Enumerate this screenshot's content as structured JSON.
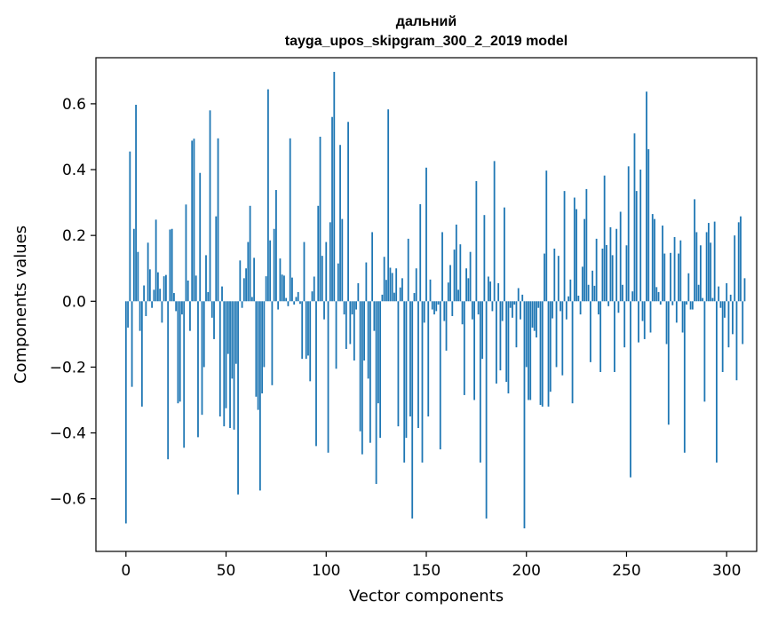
{
  "chart_data": {
    "type": "bar",
    "title": "дальний",
    "subtitle": "tayga_upos_skipgram_300_2_2019 model",
    "xlabel": "Vector components",
    "ylabel": "Components values",
    "bar_color": "#1f77b4",
    "xlim": [
      -15,
      315
    ],
    "ylim": [
      -0.76,
      0.74
    ],
    "xticks": [
      0,
      50,
      100,
      150,
      200,
      250,
      300
    ],
    "yticks": [
      -0.6,
      -0.4,
      -0.2,
      0.0,
      0.2,
      0.4,
      0.6
    ],
    "ytick_labels": [
      "−0.6",
      "−0.4",
      "−0.2",
      "0.0",
      "0.2",
      "0.4",
      "0.6"
    ],
    "values": [
      -0.675,
      -0.08,
      0.455,
      -0.26,
      0.22,
      0.597,
      0.15,
      -0.09,
      -0.32,
      0.048,
      -0.045,
      0.178,
      0.097,
      -0.02,
      0.035,
      0.248,
      0.088,
      0.038,
      -0.065,
      0.076,
      0.08,
      -0.48,
      0.218,
      0.22,
      0.025,
      -0.03,
      -0.31,
      -0.305,
      -0.04,
      -0.445,
      0.294,
      0.063,
      -0.09,
      0.488,
      0.494,
      0.078,
      -0.413,
      0.39,
      -0.345,
      -0.2,
      0.14,
      0.028,
      0.58,
      -0.05,
      -0.115,
      0.258,
      0.495,
      -0.35,
      0.045,
      -0.38,
      -0.325,
      -0.16,
      -0.385,
      -0.235,
      -0.39,
      -0.19,
      -0.587,
      0.124,
      -0.02,
      0.07,
      0.1,
      0.18,
      0.29,
      0.013,
      0.132,
      -0.29,
      -0.33,
      -0.575,
      -0.28,
      -0.2,
      0.076,
      0.644,
      0.185,
      -0.255,
      0.22,
      0.338,
      -0.025,
      0.13,
      0.081,
      0.078,
      0.01,
      -0.015,
      0.495,
      0.072,
      -0.01,
      0.013,
      0.028,
      -0.008,
      -0.175,
      0.18,
      -0.175,
      -0.165,
      -0.243,
      0.03,
      0.075,
      -0.44,
      0.29,
      0.5,
      0.138,
      -0.055,
      0.18,
      -0.46,
      0.24,
      0.56,
      0.697,
      -0.205,
      0.115,
      0.475,
      0.25,
      -0.04,
      -0.145,
      0.545,
      -0.13,
      -0.04,
      -0.18,
      -0.025,
      0.055,
      -0.395,
      -0.465,
      -0.18,
      0.118,
      -0.235,
      -0.43,
      0.21,
      -0.09,
      -0.555,
      -0.31,
      -0.415,
      0.02,
      0.135,
      0.065,
      0.583,
      0.102,
      0.086,
      0.026,
      0.1,
      -0.38,
      0.042,
      0.07,
      -0.49,
      -0.415,
      0.19,
      -0.35,
      -0.66,
      0.025,
      0.1,
      -0.385,
      0.295,
      -0.49,
      -0.065,
      0.406,
      -0.35,
      0.066,
      -0.025,
      -0.04,
      -0.03,
      -0.01,
      -0.45,
      0.21,
      -0.06,
      -0.15,
      0.057,
      0.11,
      -0.045,
      0.157,
      0.233,
      0.035,
      0.173,
      -0.07,
      -0.285,
      0.1,
      0.07,
      0.15,
      -0.055,
      -0.3,
      0.365,
      -0.04,
      -0.49,
      -0.175,
      0.262,
      -0.66,
      0.075,
      0.06,
      -0.03,
      0.426,
      -0.25,
      0.055,
      -0.21,
      -0.06,
      0.285,
      -0.245,
      -0.28,
      -0.02,
      -0.05,
      -0.01,
      -0.14,
      0.04,
      -0.055,
      0.02,
      -0.69,
      -0.2,
      -0.3,
      -0.3,
      -0.08,
      -0.09,
      -0.11,
      -0.02,
      -0.315,
      -0.32,
      0.145,
      0.397,
      -0.32,
      -0.275,
      -0.052,
      0.16,
      -0.2,
      0.138,
      -0.03,
      -0.225,
      0.335,
      -0.055,
      0.015,
      0.066,
      -0.31,
      0.315,
      0.28,
      0.017,
      -0.04,
      0.105,
      0.25,
      0.341,
      0.05,
      -0.185,
      0.093,
      0.047,
      0.19,
      -0.04,
      -0.215,
      0.16,
      0.382,
      0.171,
      -0.015,
      0.225,
      0.14,
      -0.215,
      0.22,
      -0.035,
      0.272,
      0.05,
      -0.14,
      0.17,
      0.41,
      -0.535,
      0.03,
      0.51,
      0.335,
      -0.125,
      0.4,
      -0.06,
      -0.115,
      0.637,
      0.462,
      -0.095,
      0.265,
      0.25,
      0.043,
      0.028,
      -0.01,
      0.23,
      0.145,
      -0.13,
      -0.375,
      0.147,
      -0.012,
      0.195,
      -0.065,
      0.145,
      0.185,
      -0.095,
      -0.46,
      -0.01,
      0.085,
      -0.025,
      -0.025,
      0.31,
      0.21,
      0.05,
      0.17,
      0.01,
      -0.305,
      0.21,
      0.238,
      0.178,
      0.01,
      0.242,
      -0.49,
      0.045,
      -0.02,
      -0.215,
      -0.05,
      0.055,
      -0.14,
      0.02,
      -0.1,
      0.2,
      -0.24,
      0.24,
      0.258,
      -0.13,
      0.07
    ]
  }
}
